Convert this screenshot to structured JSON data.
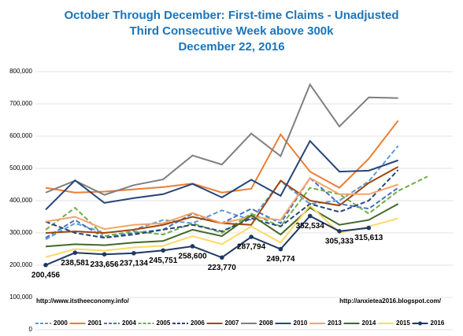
{
  "chart_data": {
    "type": "line",
    "title": [
      "October Through December: First-time Claims - Unadjusted",
      "Third Consecutive Week above 300k",
      "December 22, 2016"
    ],
    "annotations": [
      "http://www.itstheeconomy.info/",
      "http://anxietea2016.blogspot.com/"
    ],
    "categories": [
      null,
      null,
      null,
      null,
      null,
      null,
      null,
      null,
      null,
      null,
      null,
      null,
      null,
      null
    ],
    "ylim": [
      0,
      800000
    ],
    "yticks": [
      0,
      {
        "value": 100000,
        "label": "100,000"
      },
      {
        "value": 200000,
        "label": "200,000"
      },
      {
        "value": 300000,
        "label": "300,000"
      },
      {
        "value": 400000,
        "label": "400,000"
      },
      {
        "value": 500000,
        "label": "500,000"
      },
      {
        "value": 600000,
        "label": "600,000"
      },
      {
        "value": 700000,
        "label": "700,000"
      },
      {
        "value": 800000,
        "label": "800,000"
      }
    ],
    "grid": true,
    "legend": "bottom",
    "series": [
      {
        "name": "2000",
        "color": "#5b9bd5",
        "dashed": true,
        "values": [
          280000,
          330000,
          300000,
          310000,
          340000,
          330000,
          370000,
          340000,
          460000,
          390000,
          400000,
          460000,
          570000,
          null
        ]
      },
      {
        "name": "2001",
        "color": "#ed7d31",
        "dashed": false,
        "values": [
          440000,
          425000,
          428000,
          435000,
          442000,
          453000,
          425000,
          437000,
          605000,
          490000,
          440000,
          530000,
          648000,
          null
        ]
      },
      {
        "name": "2004",
        "color": "#4472c4",
        "dashed": true,
        "values": [
          285000,
          340000,
          285000,
          300000,
          310000,
          360000,
          330000,
          375000,
          330000,
          470000,
          390000,
          375000,
          440000,
          null
        ]
      },
      {
        "name": "2005",
        "color": "#70ad47",
        "dashed": true,
        "values": [
          310000,
          378000,
          290000,
          305000,
          295000,
          330000,
          300000,
          360000,
          320000,
          440000,
          420000,
          360000,
          430000,
          475000
        ]
      },
      {
        "name": "2006",
        "color": "#264478",
        "dashed": true,
        "values": [
          335000,
          300000,
          285000,
          295000,
          310000,
          325000,
          305000,
          345000,
          320000,
          390000,
          365000,
          400000,
          495000,
          null
        ]
      },
      {
        "name": "2007",
        "color": "#9e480e",
        "dashed": false,
        "values": [
          300000,
          305000,
          300000,
          310000,
          325000,
          350000,
          330000,
          325000,
          462000,
          400000,
          385000,
          455000,
          505000,
          null
        ]
      },
      {
        "name": "2008",
        "color": "#7f7f7f",
        "dashed": false,
        "values": [
          425000,
          462000,
          418000,
          448000,
          466000,
          540000,
          512000,
          608000,
          538000,
          760000,
          630000,
          720000,
          718000,
          null
        ]
      },
      {
        "name": "2010",
        "color": "#264478",
        "dashed": false,
        "values": [
          372000,
          463000,
          393000,
          408000,
          420000,
          452000,
          410000,
          465000,
          415000,
          585000,
          490000,
          493000,
          525000,
          null
        ]
      },
      {
        "name": "2013",
        "color": "#f4a46a",
        "dashed": false,
        "values": [
          335000,
          350000,
          312000,
          325000,
          330000,
          362000,
          330000,
          350000,
          340000,
          470000,
          420000,
          420000,
          450000,
          null
        ]
      },
      {
        "name": "2014",
        "color": "#43682b",
        "dashed": false,
        "values": [
          258000,
          265000,
          262000,
          270000,
          275000,
          310000,
          290000,
          355000,
          295000,
          378000,
          325000,
          340000,
          390000,
          null
        ]
      },
      {
        "name": "2015",
        "color": "#ffd966",
        "dashed": false,
        "values": [
          225000,
          250000,
          245000,
          255000,
          260000,
          290000,
          265000,
          320000,
          270000,
          385000,
          300000,
          320000,
          345000,
          null
        ]
      },
      {
        "name": "2016",
        "color": "#1f3864",
        "dashed": false,
        "markers": true,
        "values": [
          200456,
          238581,
          233656,
          237134,
          245751,
          258600,
          223770,
          287794,
          249774,
          352534,
          305333,
          315613,
          null,
          null
        ],
        "value_labels": [
          "200,456",
          "238,581",
          "233,656",
          "237,134",
          "245,751",
          "258,600",
          "223,770",
          "287,794",
          "249,774",
          "352,534",
          "305,333",
          "315,613",
          null,
          null
        ]
      }
    ]
  }
}
